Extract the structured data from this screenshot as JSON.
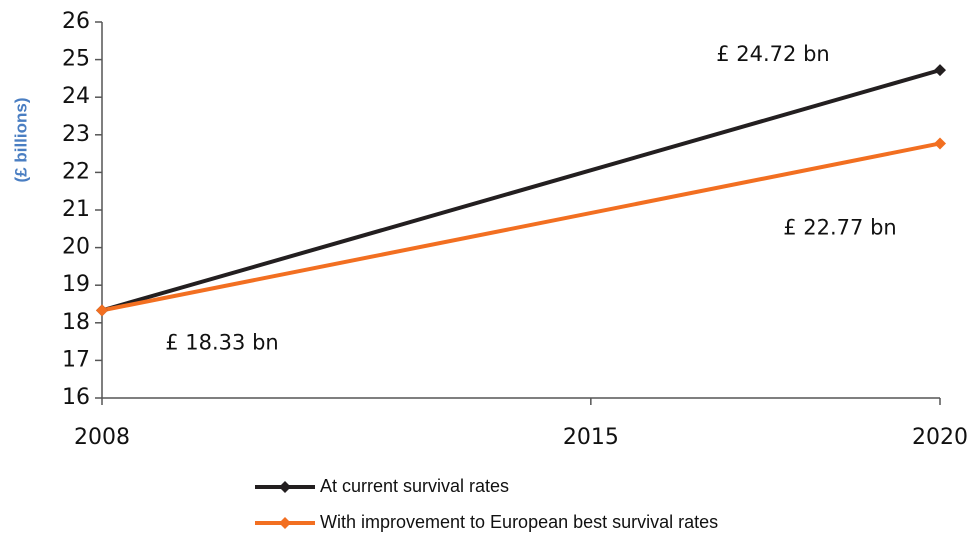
{
  "chart_data": {
    "type": "line",
    "y_label": "(£ billions)",
    "x": [
      2008,
      2020
    ],
    "xlim": [
      2008,
      2020
    ],
    "xticks": [
      2008,
      2015,
      2020
    ],
    "ylim": [
      16,
      26
    ],
    "yticks": [
      16,
      17,
      18,
      19,
      20,
      21,
      22,
      23,
      24,
      25,
      26
    ],
    "series": [
      {
        "name": "At current survival rates",
        "color": "#231f20",
        "values": [
          18.33,
          24.72
        ],
        "value_labels": [
          "£ 18.33 bn",
          "£ 24.72 bn"
        ]
      },
      {
        "name": "With improvement to European best survival rates",
        "color": "#f26f21",
        "values": [
          18.33,
          22.77
        ],
        "value_labels": [
          null,
          "£ 22.77 bn"
        ]
      }
    ],
    "legend": "bottom"
  }
}
